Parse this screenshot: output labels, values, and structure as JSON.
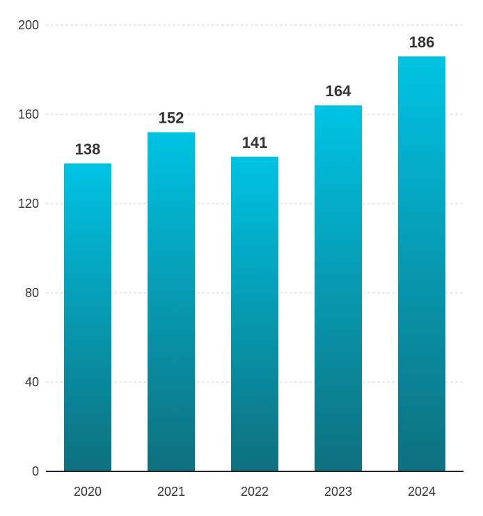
{
  "chart_data": {
    "type": "bar",
    "categories": [
      "2020",
      "2021",
      "2022",
      "2023",
      "2024"
    ],
    "values": [
      138,
      152,
      141,
      164,
      186
    ],
    "title": "",
    "xlabel": "",
    "ylabel": "",
    "ylim": [
      0,
      200
    ],
    "yticks": [
      0,
      40,
      80,
      120,
      160,
      200
    ],
    "grid": true,
    "legend": "none",
    "colors": {
      "bar_top": "#00c3e3",
      "bar_bottom": "#0e707e",
      "grid": "#d3d3d3",
      "axis": "#222222",
      "text": "#333333"
    }
  }
}
